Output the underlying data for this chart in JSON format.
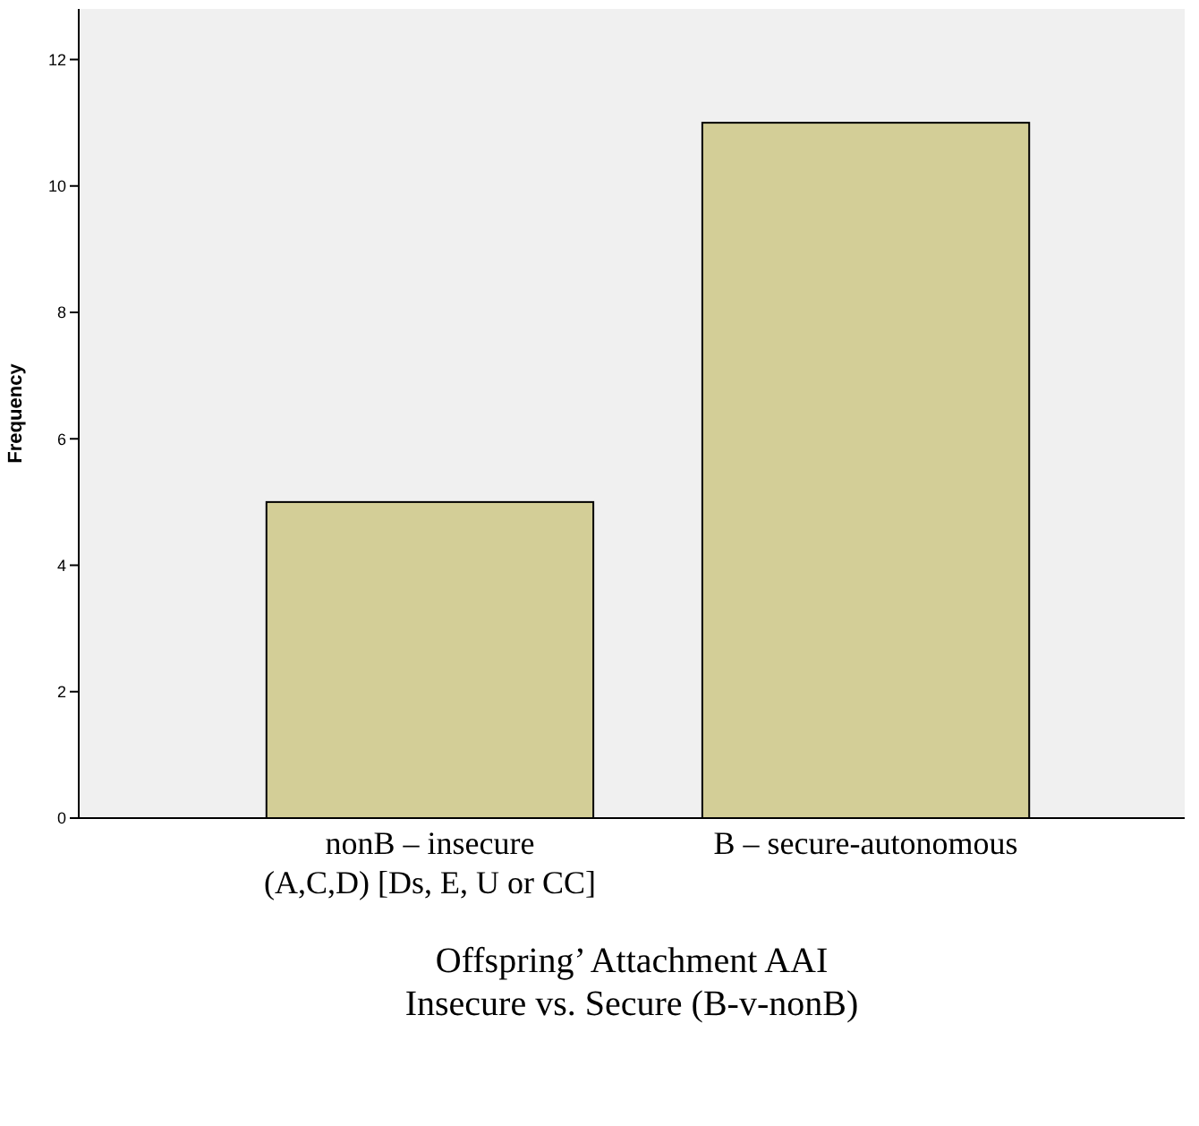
{
  "chart_data": {
    "type": "bar",
    "xlabel": "Offspring’ Attachment AAI\nInsecure vs. Secure (B-v-nonB)",
    "ylabel": "Frequency",
    "categories": [
      "nonB – insecure\n(A,C,D) [Ds, E, U or CC]",
      "B – secure-autonomous"
    ],
    "values": [
      5,
      11
    ],
    "color": "#d3ce97",
    "ylim": [
      0,
      12.8
    ],
    "yticks": [
      0,
      2,
      4,
      6,
      8,
      10,
      12
    ],
    "grid": false
  }
}
